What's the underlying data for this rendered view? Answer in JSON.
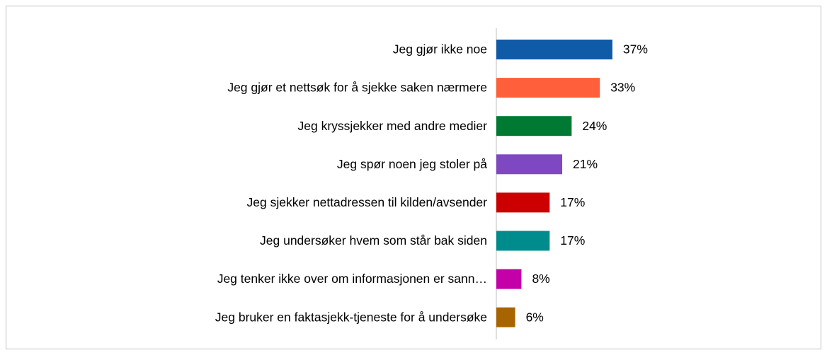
{
  "chart_data": {
    "type": "bar",
    "orientation": "horizontal",
    "categories": [
      "Jeg gjør ikke  noe",
      "Jeg gjør et nettsøk for å sjekke saken nærmere",
      "Jeg kryssjekker med andre medier",
      "Jeg spør noen jeg stoler på",
      "Jeg sjekker nettadressen til kilden/avsender",
      "Jeg undersøker hvem som står bak siden",
      "Jeg tenker ikke over om informasjonen er sann…",
      "Jeg bruker en faktasjekk-tjeneste for å undersøke"
    ],
    "values": [
      37,
      33,
      24,
      21,
      17,
      17,
      8,
      6
    ],
    "value_labels": [
      "37%",
      "33%",
      "24%",
      "21%",
      "17%",
      "17%",
      "8%",
      "6%"
    ],
    "colors": [
      "#0f5ba7",
      "#ff5f3a",
      "#007a33",
      "#7e48c3",
      "#cc0000",
      "#008c8c",
      "#c400a8",
      "#a86400"
    ]
  }
}
